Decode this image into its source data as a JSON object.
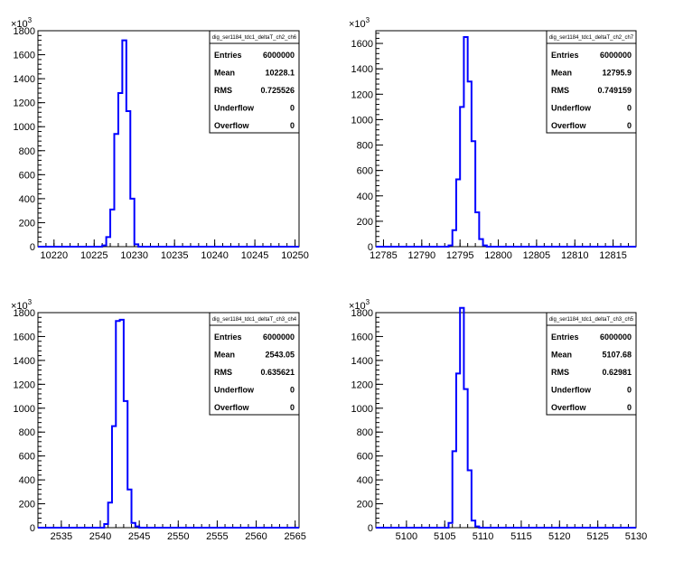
{
  "chart_data": [
    {
      "type": "histogram",
      "name": "dig_ser1184_tdc1_deltaT_ch2_ch6",
      "xlim": [
        10218,
        10250.5
      ],
      "ylim": [
        0,
        1800
      ],
      "xticks": [
        10220,
        10225,
        10230,
        10235,
        10240,
        10245,
        10250
      ],
      "yticks": [
        0,
        200,
        400,
        600,
        800,
        1000,
        1200,
        1400,
        1600,
        1800
      ],
      "y_exponent": "3",
      "bin_width": 0.5,
      "bins": [
        [
          10226,
          10
        ],
        [
          10226.5,
          80
        ],
        [
          10227,
          310
        ],
        [
          10227.5,
          940
        ],
        [
          10228,
          1280
        ],
        [
          10228.5,
          1720
        ],
        [
          10229,
          1130
        ],
        [
          10229.5,
          400
        ],
        [
          10230,
          20
        ]
      ],
      "stats": {
        "title": "dig_ser1184_tdc1_deltaT_ch2_ch6",
        "rows": [
          {
            "label": "Entries",
            "value": "6000000"
          },
          {
            "label": "Mean",
            "value": "10228.1"
          },
          {
            "label": "RMS",
            "value": "0.725526"
          },
          {
            "label": "Underflow",
            "value": "0"
          },
          {
            "label": "Overflow",
            "value": "0"
          }
        ]
      }
    },
    {
      "type": "histogram",
      "name": "dig_ser1184_tdc1_deltaT_ch2_ch7",
      "xlim": [
        12784,
        12818
      ],
      "ylim": [
        0,
        1700
      ],
      "xticks": [
        12785,
        12790,
        12795,
        12800,
        12805,
        12810,
        12815
      ],
      "yticks": [
        0,
        200,
        400,
        600,
        800,
        1000,
        1200,
        1400,
        1600
      ],
      "y_exponent": "3",
      "bin_width": 0.5,
      "bins": [
        [
          12793.5,
          10
        ],
        [
          12794,
          130
        ],
        [
          12794.5,
          530
        ],
        [
          12795,
          1100
        ],
        [
          12795.5,
          1650
        ],
        [
          12796,
          1300
        ],
        [
          12796.5,
          830
        ],
        [
          12797,
          270
        ],
        [
          12797.5,
          60
        ],
        [
          12798,
          10
        ]
      ],
      "stats": {
        "title": "dig_ser1184_tdc1_deltaT_ch2_ch7",
        "rows": [
          {
            "label": "Entries",
            "value": "6000000"
          },
          {
            "label": "Mean",
            "value": "12795.9"
          },
          {
            "label": "RMS",
            "value": "0.749159"
          },
          {
            "label": "Underflow",
            "value": "0"
          },
          {
            "label": "Overflow",
            "value": "0"
          }
        ]
      }
    },
    {
      "type": "histogram",
      "name": "dig_ser1184_tdc1_deltaT_ch3_ch4",
      "xlim": [
        2532,
        2565.5
      ],
      "ylim": [
        0,
        1800
      ],
      "xticks": [
        2535,
        2540,
        2545,
        2550,
        2555,
        2560,
        2565
      ],
      "yticks": [
        0,
        200,
        400,
        600,
        800,
        1000,
        1200,
        1400,
        1600,
        1800
      ],
      "y_exponent": "3",
      "bin_width": 0.5,
      "bins": [
        [
          2540.5,
          30
        ],
        [
          2541,
          210
        ],
        [
          2541.5,
          850
        ],
        [
          2542,
          1730
        ],
        [
          2542.5,
          1740
        ],
        [
          2543,
          1060
        ],
        [
          2543.5,
          320
        ],
        [
          2544,
          40
        ],
        [
          2544.5,
          10
        ]
      ],
      "stats": {
        "title": "dig_ser1184_tdc1_deltaT_ch3_ch4",
        "rows": [
          {
            "label": "Entries",
            "value": "6000000"
          },
          {
            "label": "Mean",
            "value": "2543.05"
          },
          {
            "label": "RMS",
            "value": "0.635621"
          },
          {
            "label": "Underflow",
            "value": "0"
          },
          {
            "label": "Overflow",
            "value": "0"
          }
        ]
      }
    },
    {
      "type": "histogram",
      "name": "dig_ser1184_tdc1_deltaT_ch3_ch5",
      "xlim": [
        5096,
        5130
      ],
      "ylim": [
        0,
        1800
      ],
      "xticks": [
        5100,
        5105,
        5110,
        5115,
        5120,
        5125,
        5130
      ],
      "yticks": [
        0,
        200,
        400,
        600,
        800,
        1000,
        1200,
        1400,
        1600,
        1800
      ],
      "y_exponent": "3",
      "bin_width": 0.5,
      "bins": [
        [
          5105.5,
          40
        ],
        [
          5106,
          640
        ],
        [
          5106.5,
          1290
        ],
        [
          5107,
          1840
        ],
        [
          5107.5,
          1160
        ],
        [
          5108,
          480
        ],
        [
          5108.5,
          60
        ],
        [
          5109,
          10
        ]
      ],
      "stats": {
        "title": "dig_ser1184_tdc1_deltaT_ch3_ch5",
        "rows": [
          {
            "label": "Entries",
            "value": "6000000"
          },
          {
            "label": "Mean",
            "value": "5107.68"
          },
          {
            "label": "RMS",
            "value": "0.62981"
          },
          {
            "label": "Underflow",
            "value": "0"
          },
          {
            "label": "Overflow",
            "value": "0"
          }
        ]
      }
    }
  ]
}
